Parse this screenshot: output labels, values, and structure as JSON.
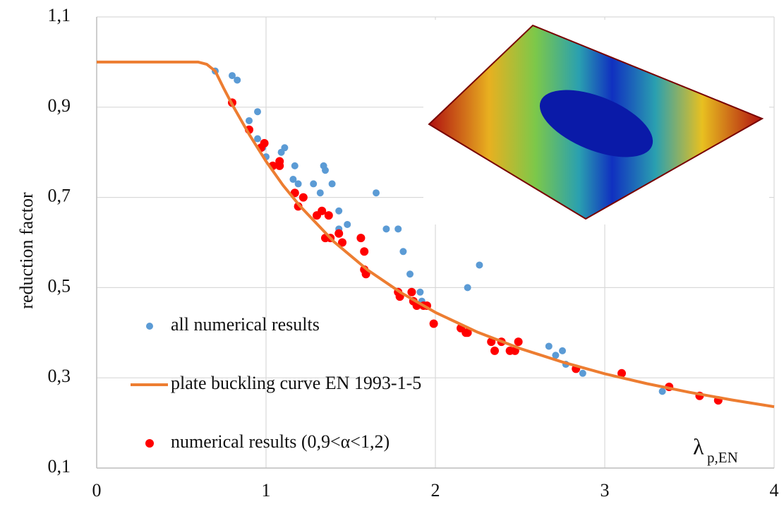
{
  "chart_data": {
    "type": "scatter",
    "ylabel": "reduction factor",
    "xlabel": "λ",
    "xlabel_subscript": "p,EN",
    "xlim": [
      0,
      4
    ],
    "xticks": [
      0,
      1,
      2,
      3,
      4
    ],
    "ylim": [
      0.1,
      1.1
    ],
    "yticks": [
      {
        "value": 0.1,
        "label": "0,1"
      },
      {
        "value": 0.3,
        "label": "0,3"
      },
      {
        "value": 0.5,
        "label": "0,5"
      },
      {
        "value": 0.7,
        "label": "0,7"
      },
      {
        "value": 0.9,
        "label": "0,9"
      },
      {
        "value": 1.1,
        "label": "1,1"
      }
    ],
    "grid": true,
    "legend": "lower left",
    "series": [
      {
        "name": "all numerical results",
        "type": "scatter",
        "color": "#5b9bd5",
        "x": [
          0.7,
          0.8,
          0.83,
          0.9,
          0.95,
          0.95,
          0.98,
          1.0,
          1.09,
          1.11,
          1.17,
          1.16,
          1.19,
          1.28,
          1.32,
          1.34,
          1.35,
          1.39,
          1.43,
          1.43,
          1.48,
          1.65,
          1.71,
          1.78,
          1.81,
          1.85,
          1.91,
          1.92,
          2.19,
          2.26,
          2.67,
          2.71,
          2.75,
          2.77,
          2.87,
          3.34
        ],
        "values": [
          0.98,
          0.97,
          0.96,
          0.87,
          0.89,
          0.83,
          0.81,
          0.79,
          0.8,
          0.81,
          0.77,
          0.74,
          0.73,
          0.73,
          0.71,
          0.77,
          0.76,
          0.73,
          0.67,
          0.63,
          0.64,
          0.71,
          0.63,
          0.63,
          0.58,
          0.53,
          0.49,
          0.47,
          0.5,
          0.55,
          0.37,
          0.35,
          0.36,
          0.33,
          0.31,
          0.27
        ]
      },
      {
        "name": "plate buckling curve EN 1993-1-5",
        "type": "line",
        "color": "#ed7d31",
        "x": [
          0,
          0.55,
          0.6,
          0.65,
          0.7,
          0.75,
          0.8,
          0.9,
          1.0,
          1.1,
          1.2,
          1.4,
          1.6,
          1.8,
          2.0,
          2.25,
          2.5,
          2.75,
          3.0,
          3.25,
          3.5,
          3.75,
          4.0
        ],
        "values": [
          1.0,
          1.0,
          1.0,
          0.995,
          0.98,
          0.942,
          0.906,
          0.84,
          0.78,
          0.727,
          0.681,
          0.602,
          0.539,
          0.488,
          0.445,
          0.401,
          0.365,
          0.335,
          0.309,
          0.287,
          0.268,
          0.251,
          0.236
        ]
      },
      {
        "name": "numerical results (0,9<α<1,2)",
        "type": "scatter",
        "color": "#ff0000",
        "x": [
          0.8,
          0.9,
          0.97,
          0.99,
          1.04,
          1.08,
          1.08,
          1.17,
          1.19,
          1.22,
          1.3,
          1.33,
          1.37,
          1.35,
          1.38,
          1.43,
          1.45,
          1.56,
          1.58,
          1.58,
          1.59,
          1.78,
          1.79,
          1.86,
          1.87,
          1.89,
          1.93,
          1.95,
          1.99,
          2.15,
          2.18,
          2.19,
          2.33,
          2.35,
          2.39,
          2.44,
          2.47,
          2.49,
          2.83,
          3.1,
          3.38,
          3.56,
          3.67
        ],
        "values": [
          0.91,
          0.85,
          0.81,
          0.82,
          0.77,
          0.78,
          0.77,
          0.71,
          0.68,
          0.7,
          0.66,
          0.67,
          0.66,
          0.61,
          0.61,
          0.62,
          0.6,
          0.61,
          0.58,
          0.54,
          0.53,
          0.49,
          0.48,
          0.49,
          0.47,
          0.46,
          0.46,
          0.46,
          0.42,
          0.41,
          0.4,
          0.4,
          0.38,
          0.36,
          0.38,
          0.36,
          0.36,
          0.38,
          0.32,
          0.31,
          0.28,
          0.26,
          0.25
        ]
      }
    ]
  }
}
